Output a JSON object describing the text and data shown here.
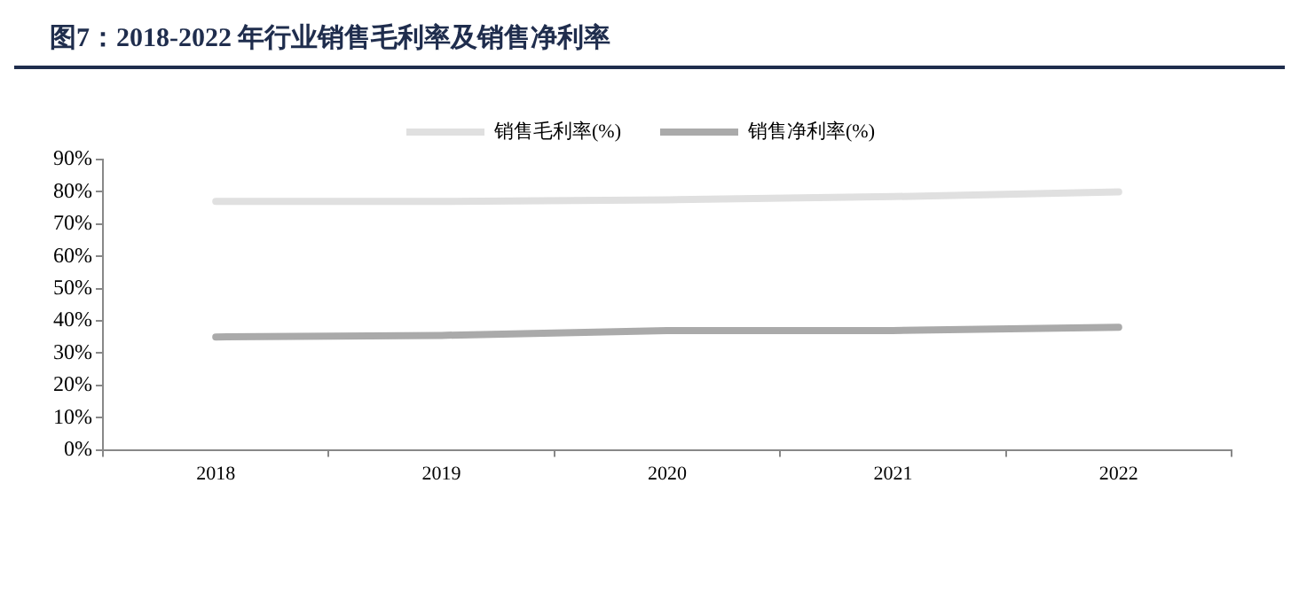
{
  "chart_data": {
    "type": "line",
    "title": "图7：2018-2022 年行业销售毛利率及销售净利率",
    "categories": [
      "2018",
      "2019",
      "2020",
      "2021",
      "2022"
    ],
    "series": [
      {
        "name": "销售毛利率(%)",
        "color": "#e0e0e0",
        "values": [
          77,
          77,
          77.5,
          78.5,
          80
        ]
      },
      {
        "name": "销售净利率(%)",
        "color": "#aaaaaa",
        "values": [
          35,
          35.5,
          37,
          37,
          38
        ]
      }
    ],
    "ylim": [
      0,
      90
    ],
    "yticks": [
      {
        "value": 0,
        "label": "0%"
      },
      {
        "value": 10,
        "label": "10%"
      },
      {
        "value": 20,
        "label": "20%"
      },
      {
        "value": 30,
        "label": "30%"
      },
      {
        "value": 40,
        "label": "40%"
      },
      {
        "value": 50,
        "label": "50%"
      },
      {
        "value": 60,
        "label": "60%"
      },
      {
        "value": 70,
        "label": "70%"
      },
      {
        "value": 80,
        "label": "80%"
      },
      {
        "value": 90,
        "label": "90%"
      }
    ],
    "legend": "top",
    "grid": false,
    "marker": "none",
    "line_style": "solid"
  }
}
